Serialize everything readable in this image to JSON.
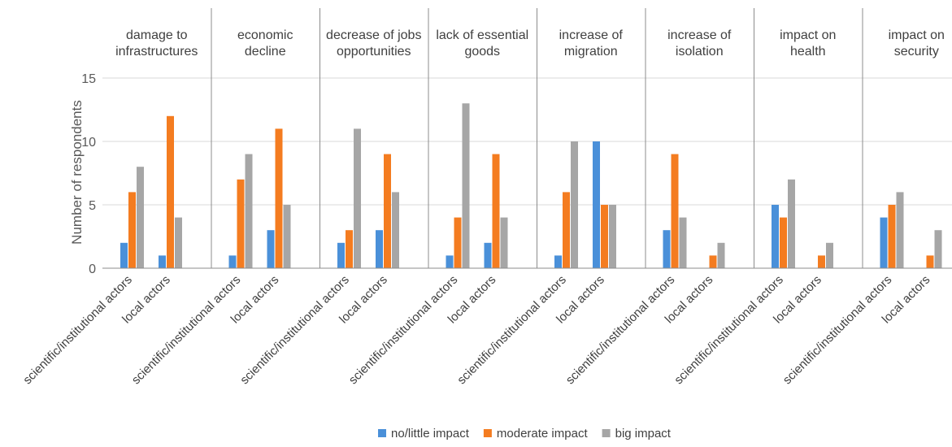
{
  "chart_data": {
    "type": "bar",
    "ylabel": "Number of respondents",
    "ylim": [
      0,
      15
    ],
    "yticks": [
      0,
      5,
      10,
      15
    ],
    "grid": true,
    "legend_position": "bottom",
    "series": [
      {
        "name": "no/little impact",
        "color": "#4a90d9"
      },
      {
        "name": "moderate impact",
        "color": "#f47c20"
      },
      {
        "name": "big impact",
        "color": "#a6a6a6"
      }
    ],
    "groups": [
      {
        "label": [
          "damage to",
          "infrastructures"
        ],
        "subgroups": [
          {
            "label": "scientific/institutional actors",
            "values": [
              2,
              6,
              8
            ]
          },
          {
            "label": "local actors",
            "values": [
              1,
              12,
              4
            ]
          }
        ]
      },
      {
        "label": [
          "economic",
          "decline"
        ],
        "subgroups": [
          {
            "label": "scientific/institutional actors",
            "values": [
              1,
              7,
              9
            ]
          },
          {
            "label": "local actors",
            "values": [
              3,
              11,
              5
            ]
          }
        ]
      },
      {
        "label": [
          "decrease of jobs",
          "opportunities"
        ],
        "subgroups": [
          {
            "label": "scientific/institutional actors",
            "values": [
              2,
              3,
              11
            ]
          },
          {
            "label": "local actors",
            "values": [
              3,
              9,
              6
            ]
          }
        ]
      },
      {
        "label": [
          "lack of essential",
          "goods"
        ],
        "subgroups": [
          {
            "label": "scientific/institutional actors",
            "values": [
              1,
              4,
              13
            ]
          },
          {
            "label": "local actors",
            "values": [
              2,
              9,
              4
            ]
          }
        ]
      },
      {
        "label": [
          "increase of",
          "migration"
        ],
        "subgroups": [
          {
            "label": "scientific/institutional actors",
            "values": [
              1,
              6,
              10
            ]
          },
          {
            "label": "local actors",
            "values": [
              10,
              5,
              5
            ]
          }
        ]
      },
      {
        "label": [
          "increase of",
          "isolation"
        ],
        "subgroups": [
          {
            "label": "scientific/institutional actors",
            "values": [
              3,
              9,
              4
            ]
          },
          {
            "label": "local actors",
            "values": [
              0,
              1,
              2
            ]
          }
        ]
      },
      {
        "label": [
          "impact on",
          "health"
        ],
        "subgroups": [
          {
            "label": "scientific/institutional actors",
            "values": [
              5,
              4,
              7
            ]
          },
          {
            "label": "local actors",
            "values": [
              0,
              1,
              2
            ]
          }
        ]
      },
      {
        "label": [
          "impact on",
          "security"
        ],
        "subgroups": [
          {
            "label": "scientific/institutional actors",
            "values": [
              4,
              5,
              6
            ]
          },
          {
            "label": "local actors",
            "values": [
              0,
              1,
              3
            ]
          }
        ]
      }
    ]
  }
}
